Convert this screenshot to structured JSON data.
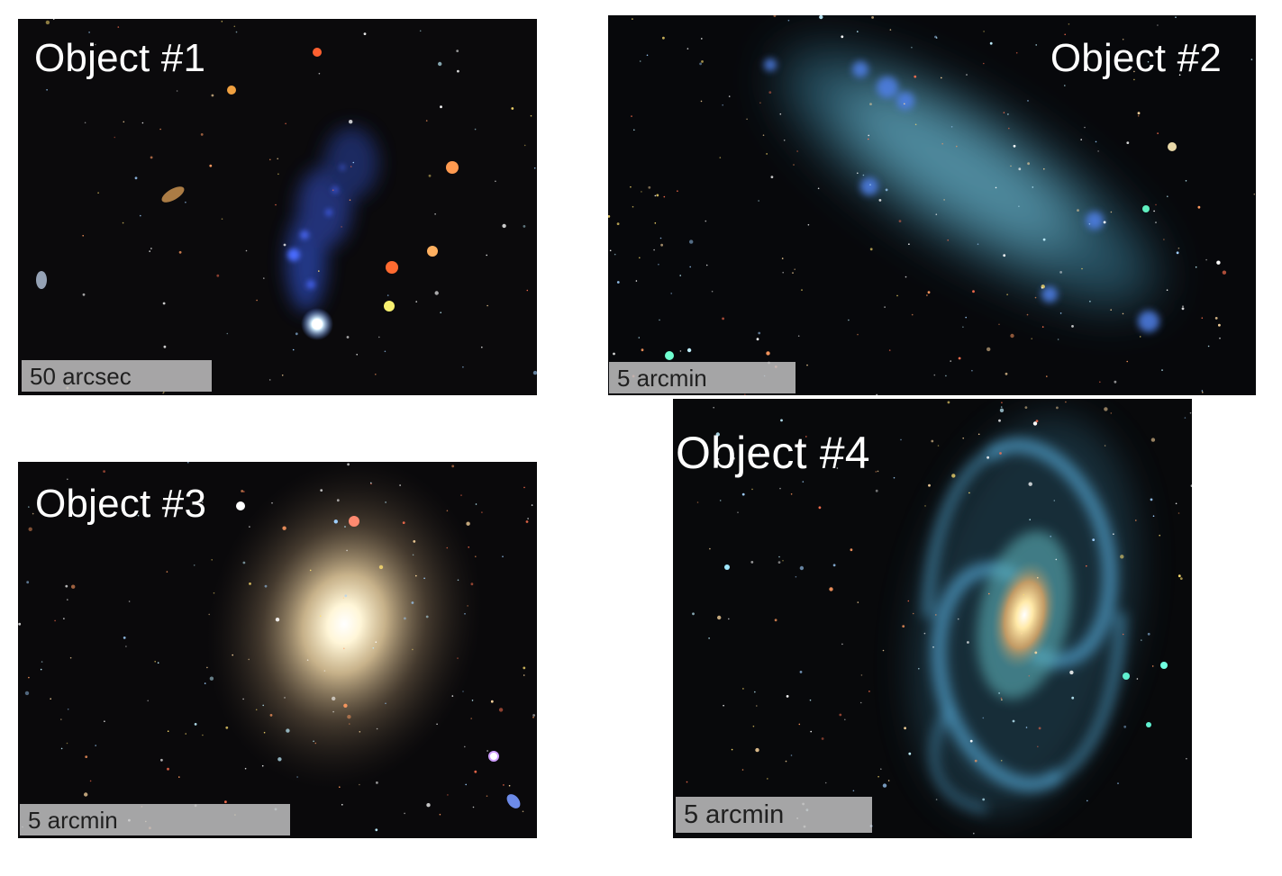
{
  "panels": [
    {
      "title": "Object #1",
      "scale_label": "50 arcsec"
    },
    {
      "title": "Object #2",
      "scale_label": "5 arcmin"
    },
    {
      "title": "Object #3",
      "scale_label": "5 arcmin"
    },
    {
      "title": "Object #4",
      "scale_label": "5 arcmin"
    }
  ],
  "colors": {
    "sky_background": "#08080a",
    "panel1_galaxy": "#3a58c8",
    "panel2_galaxy": "#5fa8c0",
    "panel3_galaxy_core": "#fff5dc",
    "panel4_galaxy_arms": "#4f9ec8",
    "panel4_galaxy_core": "#ffe9a8",
    "scale_bar": "#c8c8c8"
  }
}
